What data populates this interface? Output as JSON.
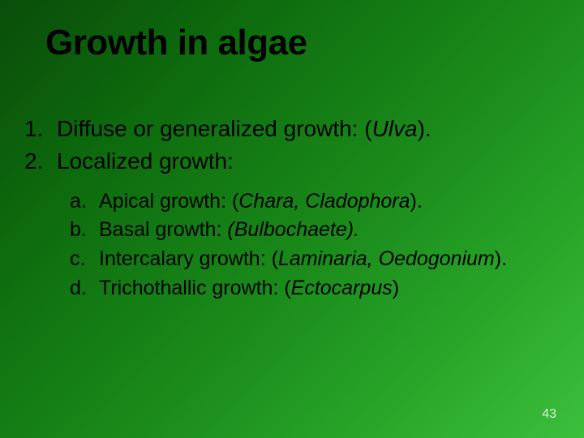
{
  "slide": {
    "title": "Growth in algae",
    "background_gradient": [
      "#0a4d0a",
      "#0d6b0d",
      "#1a8a1a",
      "#2aa82a",
      "#3cc03c"
    ],
    "main_items": [
      {
        "num": "1.",
        "text_plain": "Diffuse or generalized growth: (",
        "text_italic": "Ulva",
        "text_after": ")."
      },
      {
        "num": "2.",
        "text_plain": "Localized growth:",
        "text_italic": "",
        "text_after": ""
      }
    ],
    "sub_items": [
      {
        "let": "a.",
        "plain": "Apical growth: (",
        "italic": "Chara, Cladophora",
        "after": ")."
      },
      {
        "let": "b.",
        "plain": "Basal growth: ",
        "italic": "(Bulbochaete).",
        "after": ""
      },
      {
        "let": "c.",
        "plain": "Intercalary growth: (",
        "italic": "Laminaria, Oedogonium",
        "after": ")."
      },
      {
        "let": "d.",
        "plain": "Trichothallic growth: (",
        "italic": "Ectocarpus",
        "after": ")"
      }
    ],
    "page_number": "43",
    "title_fontsize": 44,
    "main_fontsize": 28,
    "sub_fontsize": 25,
    "title_color": "#000000",
    "text_color": "#000000",
    "page_num_color": "#d8f0d8"
  }
}
